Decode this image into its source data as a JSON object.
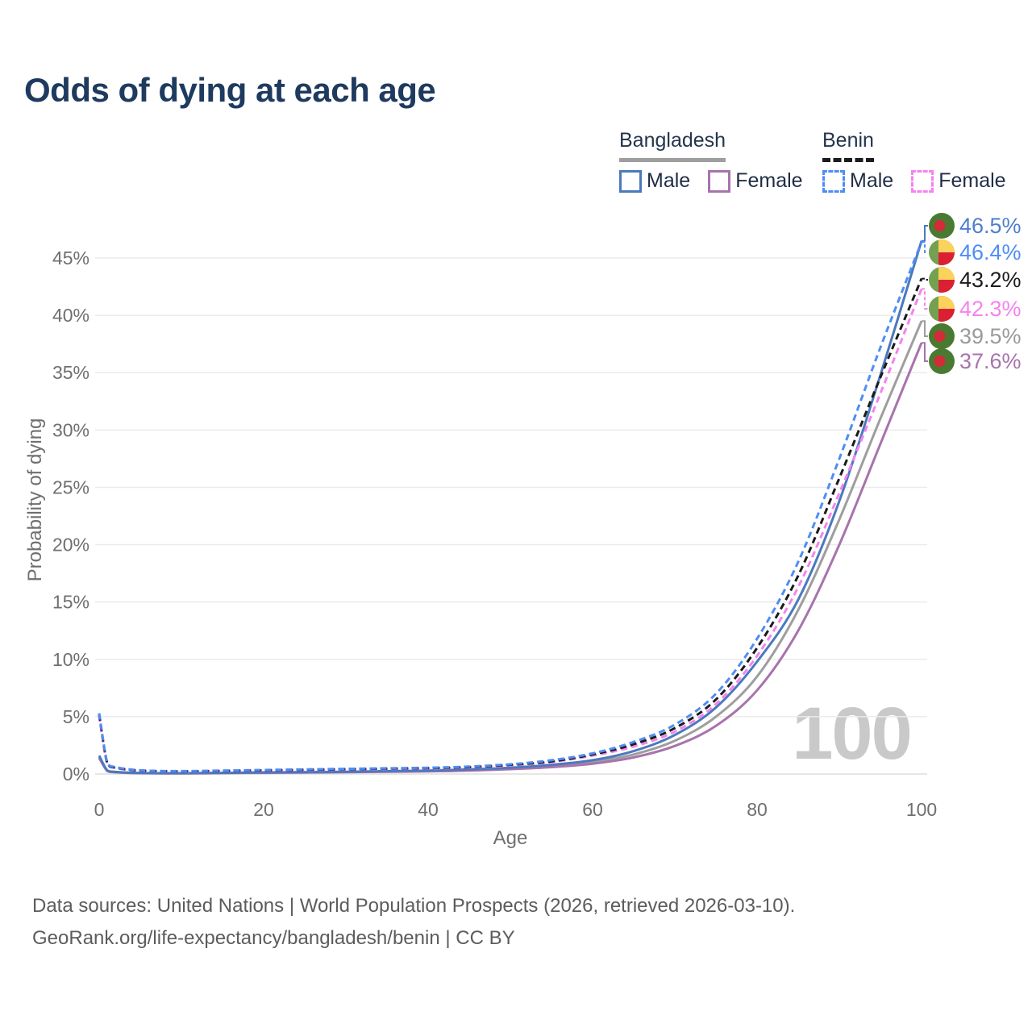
{
  "title": "Odds of dying at each age",
  "watermark": "100",
  "legend": {
    "groups": [
      {
        "name": "Bangladesh",
        "line_style": "solid",
        "line_color": "#9e9e9e",
        "items": [
          {
            "label": "Male",
            "color": "#4b79bd",
            "dashed": false
          },
          {
            "label": "Female",
            "color": "#a873ad",
            "dashed": false
          }
        ]
      },
      {
        "name": "Benin",
        "line_style": "dashed",
        "line_color": "#1b1b1b",
        "items": [
          {
            "label": "Male",
            "color": "#4f8df5",
            "dashed": true
          },
          {
            "label": "Female",
            "color": "#f583ee",
            "dashed": true
          }
        ]
      }
    ]
  },
  "chart_data": {
    "type": "line",
    "title": "Odds of dying at each age",
    "xlabel": "Age",
    "ylabel": "Probability of dying",
    "xlim": [
      0,
      100
    ],
    "ylim_percent": [
      0,
      48
    ],
    "grid": "horizontal",
    "legend_position": "top-right",
    "x_ticks": [
      {
        "label": "0",
        "value": 0
      },
      {
        "label": "20",
        "value": 20
      },
      {
        "label": "40",
        "value": 40
      },
      {
        "label": "60",
        "value": 60
      },
      {
        "label": "80",
        "value": 80
      },
      {
        "label": "100",
        "value": 100
      }
    ],
    "y_ticks": [
      {
        "label": "0%",
        "value": 0
      },
      {
        "label": "5%",
        "value": 5
      },
      {
        "label": "10%",
        "value": 10
      },
      {
        "label": "15%",
        "value": 15
      },
      {
        "label": "20%",
        "value": 20
      },
      {
        "label": "25%",
        "value": 25
      },
      {
        "label": "30%",
        "value": 30
      },
      {
        "label": "35%",
        "value": 35
      },
      {
        "label": "40%",
        "value": 40
      },
      {
        "label": "45%",
        "value": 45
      }
    ],
    "ages": [
      0,
      1,
      2,
      5,
      10,
      15,
      20,
      25,
      30,
      35,
      40,
      45,
      50,
      55,
      60,
      65,
      70,
      75,
      80,
      85,
      90,
      95,
      100
    ],
    "series": [
      {
        "name": "Bangladesh (both sexes)",
        "country": "Bangladesh",
        "sex": "All",
        "flag": "bangladesh",
        "color": "#9e9e9e",
        "dashed": false,
        "end_label": "39.5%",
        "end_label_color": "#9a9a9a",
        "values": [
          1.5,
          0.27,
          0.16,
          0.08,
          0.06,
          0.09,
          0.12,
          0.15,
          0.18,
          0.22,
          0.27,
          0.35,
          0.5,
          0.7,
          1.05,
          1.7,
          2.9,
          5.0,
          8.5,
          14.3,
          22.2,
          31.0,
          39.5
        ]
      },
      {
        "name": "Bangladesh Female",
        "country": "Bangladesh",
        "sex": "Female",
        "flag": "bangladesh",
        "color": "#a873ad",
        "dashed": false,
        "end_label": "37.6%",
        "end_label_color": "#a873ad",
        "values": [
          1.4,
          0.25,
          0.15,
          0.07,
          0.05,
          0.08,
          0.1,
          0.13,
          0.16,
          0.19,
          0.23,
          0.3,
          0.42,
          0.6,
          0.9,
          1.45,
          2.45,
          4.2,
          7.3,
          12.5,
          20.0,
          28.8,
          37.6
        ]
      },
      {
        "name": "Bangladesh Male",
        "country": "Bangladesh",
        "sex": "Male",
        "flag": "bangladesh",
        "color": "#4b79bd",
        "dashed": false,
        "end_label": "46.5%",
        "end_label_color": "#4e7fd0",
        "values": [
          1.6,
          0.3,
          0.18,
          0.09,
          0.07,
          0.1,
          0.14,
          0.17,
          0.2,
          0.25,
          0.3,
          0.4,
          0.55,
          0.8,
          1.2,
          2.0,
          3.4,
          5.8,
          9.8,
          15.2,
          23.8,
          34.8,
          46.5
        ]
      },
      {
        "name": "Benin Female",
        "country": "Benin",
        "sex": "Female",
        "flag": "benin",
        "color": "#f583ee",
        "dashed": true,
        "end_label": "42.3%",
        "end_label_color": "#f583ee",
        "values": [
          5.1,
          0.85,
          0.52,
          0.28,
          0.21,
          0.25,
          0.3,
          0.35,
          0.4,
          0.44,
          0.49,
          0.56,
          0.75,
          1.05,
          1.6,
          2.4,
          3.7,
          6.1,
          10.3,
          16.3,
          24.5,
          33.2,
          42.3
        ]
      },
      {
        "name": "Benin (both sexes)",
        "country": "Benin",
        "sex": "All",
        "flag": "benin",
        "color": "#1b1b1b",
        "dashed": true,
        "end_label": "43.2%",
        "end_label_color": "#1c1c1c",
        "values": [
          5.2,
          0.9,
          0.56,
          0.3,
          0.23,
          0.27,
          0.32,
          0.37,
          0.42,
          0.47,
          0.52,
          0.6,
          0.8,
          1.1,
          1.7,
          2.6,
          4.0,
          6.5,
          11.0,
          17.3,
          25.8,
          34.6,
          43.2
        ]
      },
      {
        "name": "Benin Male",
        "country": "Benin",
        "sex": "Male",
        "flag": "benin",
        "color": "#4f8df5",
        "dashed": true,
        "end_label": "46.4%",
        "end_label_color": "#4f8df5",
        "values": [
          5.3,
          0.95,
          0.6,
          0.32,
          0.25,
          0.3,
          0.35,
          0.4,
          0.45,
          0.5,
          0.55,
          0.65,
          0.85,
          1.2,
          1.8,
          2.8,
          4.3,
          7.0,
          11.8,
          18.5,
          27.5,
          37.2,
          46.4
        ]
      }
    ]
  },
  "flag_colors": {
    "bd_green": "#4a7a31",
    "bd_red": "#d42b38",
    "bj_green": "#74a150",
    "bj_yellow": "#fbd25c",
    "bj_red": "#dc2033"
  },
  "grid_color": "#ebebeb",
  "source": {
    "line1": "Data sources: United Nations | World Population Prospects (2026, retrieved 2026-03-10).",
    "line2": "GeoRank.org/life-expectancy/bangladesh/benin | CC BY"
  }
}
